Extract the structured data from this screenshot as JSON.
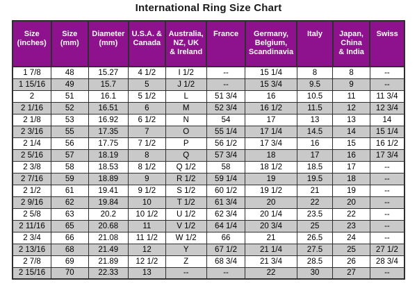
{
  "title": "International Ring Size Chart",
  "colors": {
    "header_bg": "#8E128E",
    "header_text": "#FFFFFF",
    "row_alt_bg": "#C9C9C9",
    "grid_line": "#2E2E2E"
  },
  "chart_data": {
    "type": "table",
    "title": "International Ring Size Chart",
    "columns": [
      "Size\n(inches)",
      "Size\n(mm)",
      "Diameter\n(mm)",
      "U.S.A. &\nCanada",
      "Australia,\nNZ, UK\n& Ireland",
      "France",
      "Germany,\nBelgium,\nScandinavia",
      "Italy",
      "Japan,\nChina\n& India",
      "Swiss"
    ],
    "rows": [
      [
        "1 7/8",
        "48",
        "15.27",
        "4 1/2",
        "I 1/2",
        "--",
        "15 1/4",
        "8",
        "8",
        "--"
      ],
      [
        "1 15/16",
        "49",
        "15.7",
        "5",
        "J 1/2",
        "--",
        "15 3/4",
        "9.5",
        "9",
        "--"
      ],
      [
        "2",
        "51",
        "16.1",
        "5 1/2",
        "L",
        "51 3/4",
        "16",
        "10.5",
        "11",
        "11 3/4"
      ],
      [
        "2 1/16",
        "52",
        "16.51",
        "6",
        "M",
        "52 3/4",
        "16 1/2",
        "11.5",
        "12",
        "12 3/4"
      ],
      [
        "2 1/8",
        "53",
        "16.92",
        "6 1/2",
        "N",
        "54",
        "17",
        "13",
        "13",
        "14"
      ],
      [
        "2 3/16",
        "55",
        "17.35",
        "7",
        "O",
        "55 1/4",
        "17 1/4",
        "14.5",
        "14",
        "15 1/4"
      ],
      [
        "2 1/4",
        "56",
        "17.75",
        "7 1/2",
        "P",
        "56 1/2",
        "17 3/4",
        "16",
        "15",
        "16 1/2"
      ],
      [
        "2 5/16",
        "57",
        "18.19",
        "8",
        "Q",
        "57 3/4",
        "18",
        "17",
        "16",
        "17 3/4"
      ],
      [
        "2 3/8",
        "58",
        "18.53",
        "8 1/2",
        "Q 1/2",
        "58",
        "18 1/2",
        "18.5",
        "17",
        "--"
      ],
      [
        "2 7/16",
        "59",
        "18.89",
        "9",
        "R 1/2",
        "59 1/4",
        "19",
        "19.5",
        "18",
        "--"
      ],
      [
        "2 1/2",
        "61",
        "19.41",
        "9 1/2",
        "S 1/2",
        "60 1/2",
        "19 1/2",
        "21",
        "19",
        "--"
      ],
      [
        "2 9/16",
        "62",
        "19.84",
        "10",
        "T 1/2",
        "61 3/4",
        "20",
        "22",
        "20",
        "--"
      ],
      [
        "2 5/8",
        "63",
        "20.2",
        "10 1/2",
        "U 1/2",
        "62 3/4",
        "20 1/4",
        "23.5",
        "22",
        "--"
      ],
      [
        "2 11/16",
        "65",
        "20.68",
        "11",
        "V 1/2",
        "64 1/4",
        "20 3/4",
        "25",
        "23",
        "--"
      ],
      [
        "2 3/4",
        "66",
        "21.08",
        "11 1/2",
        "W 1/2",
        "66",
        "21",
        "26.5",
        "24",
        "--"
      ],
      [
        "2 13/16",
        "68",
        "21.49",
        "12",
        "Y",
        "67 1/2",
        "21 1/4",
        "27.5",
        "25",
        "27 1/2"
      ],
      [
        "2 7/8",
        "69",
        "21.89",
        "12 1/2",
        "Z",
        "68 3/4",
        "21 3/4",
        "28.5",
        "26",
        "28 3/4"
      ],
      [
        "2 15/16",
        "70",
        "22.33",
        "13",
        "--",
        "--",
        "22",
        "30",
        "27",
        "--"
      ]
    ]
  }
}
